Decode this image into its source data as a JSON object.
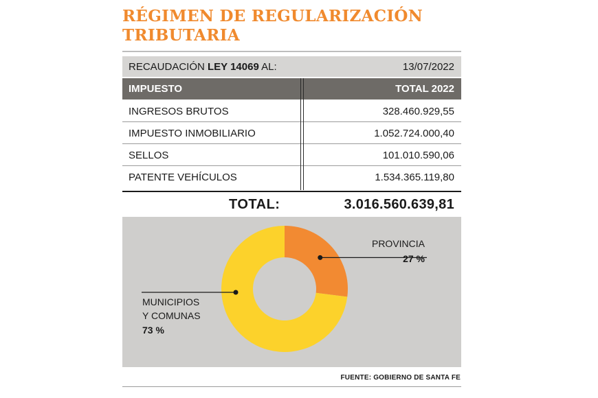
{
  "title": {
    "line1": "RÉGIMEN DE REGULARIZACIÓN",
    "line2": "TRIBUTARIA"
  },
  "table": {
    "date_label_prefix": "RECAUDACIÓN ",
    "date_label_bold": "LEY 14069",
    "date_label_suffix": " AL:",
    "date": "13/07/2022",
    "col_tax": "IMPUESTO",
    "col_total": "TOTAL 2022",
    "rows": [
      {
        "name": "INGRESOS BRUTOS",
        "value": "328.460.929,55"
      },
      {
        "name": "IMPUESTO INMOBILIARIO",
        "value": "1.052.724.000,40"
      },
      {
        "name": "SELLOS",
        "value": "101.010.590,06"
      },
      {
        "name": "PATENTE VEHÍCULOS",
        "value": "1.534.365.119,80"
      }
    ],
    "total_label": "TOTAL:",
    "total_value": "3.016.560.639,81"
  },
  "chart_data": {
    "type": "pie",
    "donut": true,
    "slices": [
      {
        "label_lines": [
          "PROVINCIA"
        ],
        "percent_text": "27 %",
        "value": 27,
        "color": "#f28a32"
      },
      {
        "label_lines": [
          "MUNICIPIOS",
          "Y COMUNAS"
        ],
        "percent_text": "73 %",
        "value": 73,
        "color": "#fcd22b"
      }
    ]
  },
  "source": "FUENTE: GOBIERNO DE SANTA FE",
  "colors": {
    "title": "#f08a2e",
    "header_bg": "#6e6b67",
    "date_bg": "#d6d5d3",
    "chart_bg": "#cfcecc"
  }
}
